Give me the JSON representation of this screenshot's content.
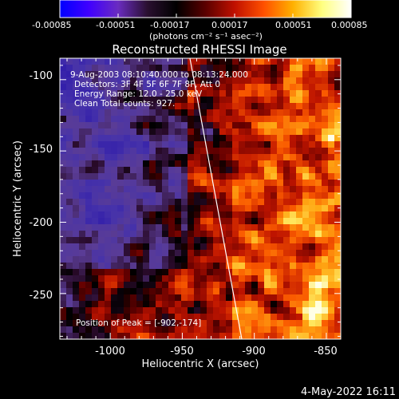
{
  "colorbar": {
    "tick_labels": [
      "-0.00085",
      "-0.00051",
      "-0.00017",
      "0.00017",
      "0.00051",
      "0.00085"
    ],
    "units_label": "(photons cm⁻² s⁻¹ asec⁻²)",
    "colors": [
      "#0000ff",
      "#4000ff",
      "#6a2cc0",
      "#2a1030",
      "#000000",
      "#5a0000",
      "#c01000",
      "#ff5000",
      "#ffb000",
      "#ffff80",
      "#ffffff"
    ]
  },
  "plot": {
    "title": "Reconstructed RHESSI Image",
    "annotations": {
      "time_range": "9-Aug-2003 08:10:40.000 to 08:13:24.000",
      "detectors": "Detectors: 3F 4F 5F 6F 7F 8F, Att 0",
      "energy": "Energy Range: 12.0 - 25.0 keV",
      "clean": "Clean    Total counts: 927."
    },
    "peak_label": "Position of Peak = [-902,-174]",
    "x_axis": {
      "label": "Heliocentric X (arcsec)",
      "range": [
        -1035,
        -840
      ],
      "ticks": [
        -1000,
        -950,
        -900,
        -850
      ],
      "tick_labels": [
        "-1000",
        "-950",
        "-900",
        "-850"
      ]
    },
    "y_axis": {
      "label": "Heliocentric Y (arcsec)",
      "range": [
        -282,
        -85
      ],
      "ticks": [
        -100,
        -150,
        -200,
        -250
      ],
      "tick_labels": [
        "-100",
        "-150",
        "-200",
        "-250"
      ]
    }
  },
  "footer": {
    "date": "4-May-2022 16:11"
  }
}
